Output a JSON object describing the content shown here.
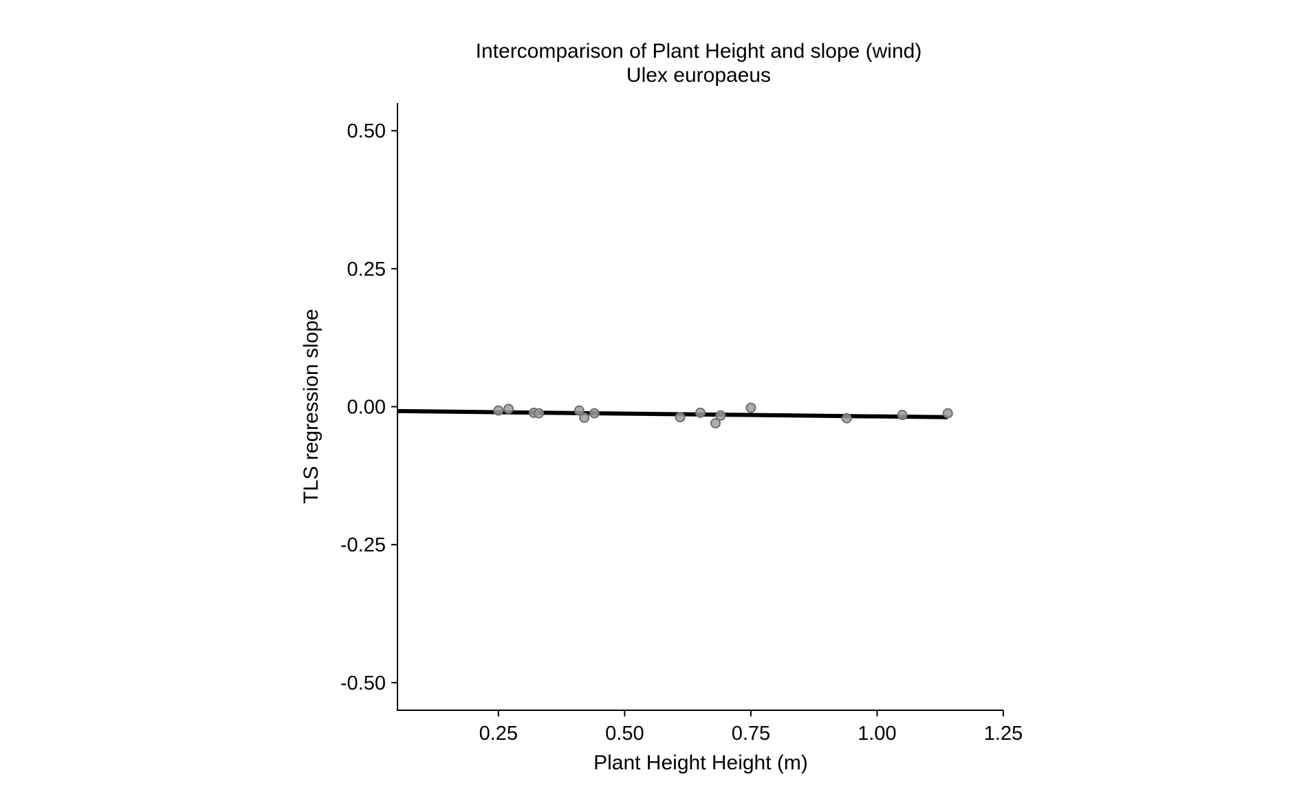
{
  "chart_data": {
    "type": "scatter",
    "title": "Intercomparison of Plant Height and slope (wind)",
    "subtitle": "Ulex europaeus",
    "xlabel": "Plant Height Height (m)",
    "ylabel": "TLS regression slope",
    "xlim": [
      0.05,
      1.25
    ],
    "ylim": [
      -0.55,
      0.55
    ],
    "x_ticks": [
      0.25,
      0.5,
      0.75,
      1.0,
      1.25
    ],
    "x_tick_labels": [
      "0.25",
      "0.50",
      "0.75",
      "1.00",
      "1.25"
    ],
    "y_ticks": [
      0.5,
      0.25,
      0.0,
      -0.25,
      -0.5
    ],
    "y_tick_labels": [
      "0.50",
      "0.25",
      "0.00",
      "-0.25",
      "-0.50"
    ],
    "grid": false,
    "legend": "none",
    "point_color": "#9e9e9e",
    "point_stroke": "#6e6e6e",
    "line_color": "#000000",
    "points": [
      {
        "x": 0.25,
        "y": -0.007
      },
      {
        "x": 0.27,
        "y": -0.004
      },
      {
        "x": 0.32,
        "y": -0.011
      },
      {
        "x": 0.33,
        "y": -0.012
      },
      {
        "x": 0.41,
        "y": -0.007
      },
      {
        "x": 0.42,
        "y": -0.02
      },
      {
        "x": 0.44,
        "y": -0.012
      },
      {
        "x": 0.61,
        "y": -0.019
      },
      {
        "x": 0.65,
        "y": -0.011
      },
      {
        "x": 0.68,
        "y": -0.03
      },
      {
        "x": 0.69,
        "y": -0.016
      },
      {
        "x": 0.75,
        "y": -0.002
      },
      {
        "x": 0.94,
        "y": -0.021
      },
      {
        "x": 1.05,
        "y": -0.015
      },
      {
        "x": 1.14,
        "y": -0.012
      }
    ],
    "trend_line": {
      "x": [
        0.05,
        1.14
      ],
      "y": [
        -0.008,
        -0.019
      ]
    }
  }
}
